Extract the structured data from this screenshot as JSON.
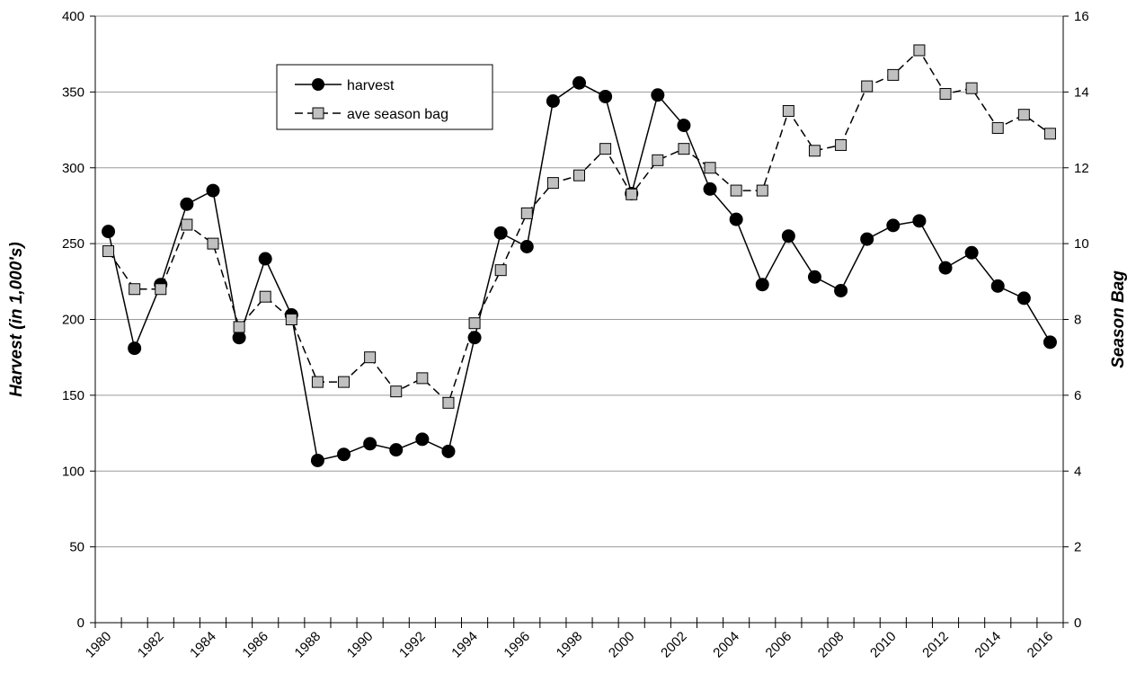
{
  "chart_data": {
    "type": "line",
    "x_tick_labels": [
      "1980",
      "1982",
      "1984",
      "1986",
      "1988",
      "1990",
      "1992",
      "1994",
      "1996",
      "1998",
      "2000",
      "2002",
      "2004",
      "2006",
      "2008",
      "2010",
      "2012",
      "2014",
      "2016"
    ],
    "y_left": {
      "label": "Harvest (in 1,000's)",
      "ylim": [
        0,
        400
      ],
      "ticks": [
        0,
        50,
        100,
        150,
        200,
        250,
        300,
        350,
        400
      ]
    },
    "y_right": {
      "label": "Season Bag",
      "ylim": [
        0,
        16
      ],
      "ticks": [
        0,
        2,
        4,
        6,
        8,
        10,
        12,
        14,
        16
      ]
    },
    "grid": {
      "horizontal": true,
      "vertical": false
    },
    "legend_position": "top-center",
    "x": [
      1980,
      1981,
      1982,
      1983,
      1984,
      1985,
      1986,
      1987,
      1988,
      1989,
      1990,
      1991,
      1992,
      1993,
      1994,
      1995,
      1996,
      1997,
      1998,
      1999,
      2000,
      2001,
      2002,
      2003,
      2004,
      2005,
      2006,
      2007,
      2008,
      2009,
      2010,
      2011,
      2012,
      2013,
      2014,
      2015,
      2016
    ],
    "series": [
      {
        "name": "harvest",
        "axis": "left",
        "marker": "circle",
        "color": "#000000",
        "dashed": false,
        "values": [
          258,
          181,
          223,
          276,
          285,
          188,
          240,
          203,
          107,
          111,
          118,
          114,
          121,
          113,
          188,
          257,
          248,
          344,
          356,
          347,
          283,
          348,
          328,
          286,
          266,
          223,
          255,
          228,
          219,
          253,
          262,
          265,
          234,
          244,
          222,
          214,
          185
        ]
      },
      {
        "name": "ave season bag",
        "axis": "right",
        "marker": "square",
        "color": "#000000",
        "marker_fill": "#c0c0c0",
        "dashed": true,
        "values": [
          9.8,
          8.8,
          8.8,
          10.5,
          10.0,
          7.8,
          8.6,
          8.0,
          6.35,
          6.35,
          7.0,
          6.1,
          6.45,
          5.8,
          7.9,
          9.3,
          10.8,
          11.6,
          11.8,
          12.5,
          11.3,
          12.2,
          12.5,
          12.0,
          11.4,
          11.4,
          13.5,
          12.45,
          12.6,
          14.15,
          14.45,
          15.1,
          13.95,
          14.1,
          13.05,
          13.4,
          12.9
        ]
      }
    ]
  }
}
